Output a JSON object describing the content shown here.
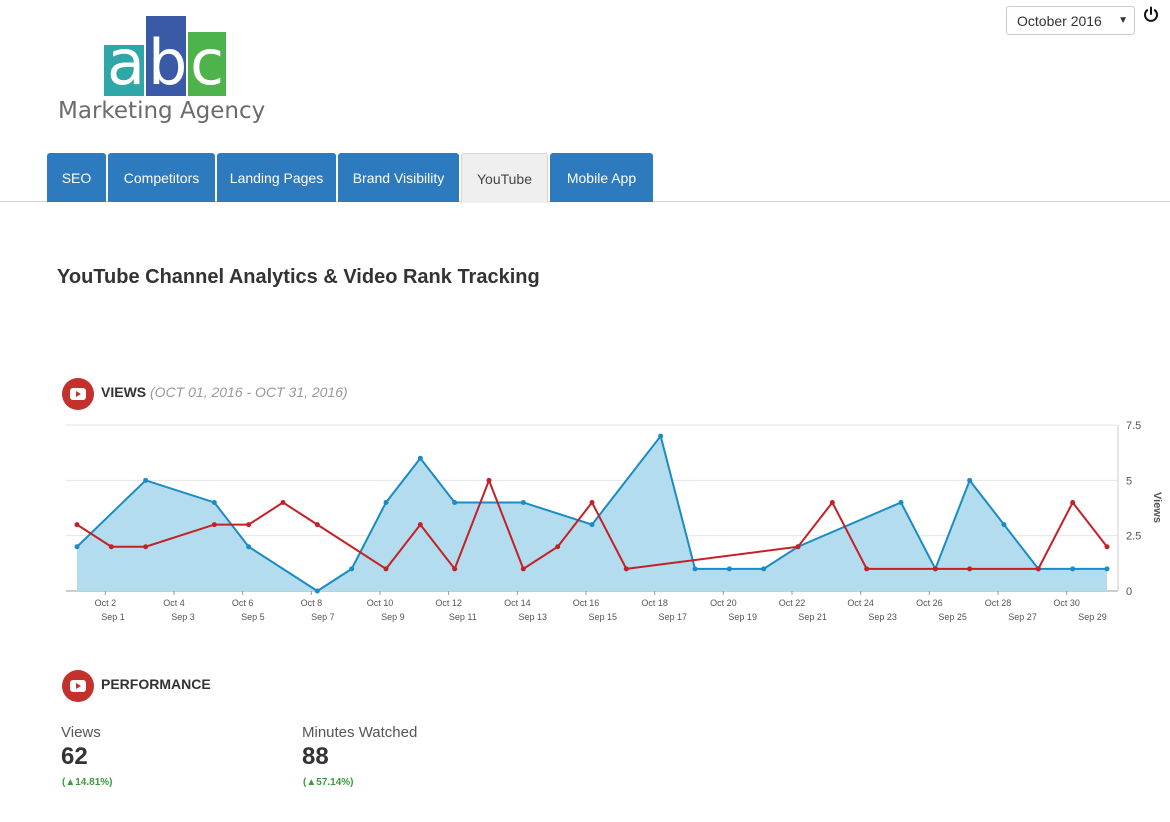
{
  "logo": {
    "letters": [
      "a",
      "b",
      "c"
    ],
    "tagline": "Marketing Agency"
  },
  "header": {
    "month": "October 2016",
    "power_icon": "power-icon"
  },
  "tabs": [
    {
      "label": "SEO",
      "active": false
    },
    {
      "label": "Competitors",
      "active": false
    },
    {
      "label": "Landing Pages",
      "active": false
    },
    {
      "label": "Brand Visibility",
      "active": false
    },
    {
      "label": "YouTube",
      "active": true
    },
    {
      "label": "Mobile App",
      "active": false
    }
  ],
  "page_title": "YouTube Channel Analytics & Video Rank Tracking",
  "views_section": {
    "label": "VIEWS",
    "range": "(OCT 01, 2016 - OCT 31, 2016)",
    "icon": "youtube-icon"
  },
  "performance_section": {
    "label": "PERFORMANCE",
    "icon": "youtube-icon",
    "metrics": [
      {
        "label": "Views",
        "value": "62",
        "change": "14.81%"
      },
      {
        "label": "Minutes Watched",
        "value": "88",
        "change": "57.14%"
      }
    ]
  },
  "colors": {
    "current": "#1a8cc4",
    "current_fill": "#b3dcee",
    "previous": "#c42027",
    "tab": "#2e7abf",
    "youtube": "#c4302b"
  },
  "chart_data": {
    "type": "area",
    "ylabel": "Views",
    "ylim": [
      0,
      7.5
    ],
    "yticks": [
      "0",
      "2.5",
      "5",
      "7.5"
    ],
    "x_top_labels": [
      "Oct 2",
      "Oct 4",
      "Oct 6",
      "Oct 8",
      "Oct 10",
      "Oct 12",
      "Oct 14",
      "Oct 16",
      "Oct 18",
      "Oct 20",
      "Oct 22",
      "Oct 24",
      "Oct 26",
      "Oct 28",
      "Oct 30"
    ],
    "x_bottom_labels": [
      "Sep 1",
      "Sep 3",
      "Sep 5",
      "Sep 7",
      "Sep 9",
      "Sep 11",
      "Sep 13",
      "Sep 15",
      "Sep 17",
      "Sep 19",
      "Sep 21",
      "Sep 23",
      "Sep 25",
      "Sep 27",
      "Sep 29"
    ],
    "series": [
      {
        "values": [
          [
            1,
            2
          ],
          [
            3,
            5
          ],
          [
            5,
            4
          ],
          [
            6,
            2
          ],
          [
            8,
            0
          ],
          [
            9,
            1
          ],
          [
            10,
            4
          ],
          [
            11,
            6
          ],
          [
            12,
            4
          ],
          [
            14,
            4
          ],
          [
            16,
            3
          ],
          [
            18,
            7
          ],
          [
            19,
            1
          ],
          [
            20,
            1
          ],
          [
            21,
            1
          ],
          [
            22,
            2
          ],
          [
            25,
            4
          ],
          [
            26,
            1
          ],
          [
            27,
            5
          ],
          [
            28,
            3
          ],
          [
            29,
            1
          ],
          [
            30,
            1
          ],
          [
            31,
            1
          ]
        ]
      },
      {
        "values": [
          [
            1,
            3
          ],
          [
            2,
            2
          ],
          [
            3,
            2
          ],
          [
            5,
            3
          ],
          [
            6,
            3
          ],
          [
            7,
            4
          ],
          [
            8,
            3
          ],
          [
            10,
            1
          ],
          [
            11,
            3
          ],
          [
            12,
            1
          ],
          [
            13,
            5
          ],
          [
            14,
            1
          ],
          [
            15,
            2
          ],
          [
            16,
            4
          ],
          [
            17,
            1
          ],
          [
            22,
            2
          ],
          [
            23,
            4
          ],
          [
            24,
            1
          ],
          [
            26,
            1
          ],
          [
            27,
            1
          ],
          [
            29,
            1
          ],
          [
            30,
            4
          ],
          [
            31,
            2
          ]
        ]
      }
    ]
  }
}
